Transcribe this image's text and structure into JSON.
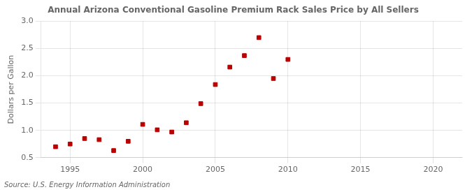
{
  "chart_data": {
    "type": "scatter",
    "title": "Annual Arizona Conventional Gasoline Premium Rack Sales Price by All Sellers",
    "ylabel": "Dollars per Gallon",
    "annotations": [
      "Source: U.S. Energy Information Administration"
    ],
    "x": [
      1994,
      1995,
      1996,
      1997,
      1998,
      1999,
      2000,
      2001,
      2002,
      2003,
      2004,
      2005,
      2006,
      2007,
      2008,
      2009,
      2010
    ],
    "values": [
      0.7,
      0.75,
      0.85,
      0.83,
      0.63,
      0.8,
      1.11,
      1.01,
      0.97,
      1.14,
      1.49,
      1.84,
      2.16,
      2.37,
      2.7,
      1.95,
      2.3
    ],
    "color": "#bb0000",
    "marker": "square",
    "xlim": [
      1993,
      2022
    ],
    "ylim": [
      0.5,
      3.0
    ],
    "xticks": [
      1995,
      2000,
      2005,
      2010,
      2015,
      2020
    ],
    "yticks": [
      0.5,
      {
        "value": 1.0,
        "label": "1.0"
      },
      1.5,
      {
        "value": 2.0,
        "label": "2.0"
      },
      2.5,
      {
        "value": 3.0,
        "label": "3.0"
      }
    ],
    "grid": true
  }
}
